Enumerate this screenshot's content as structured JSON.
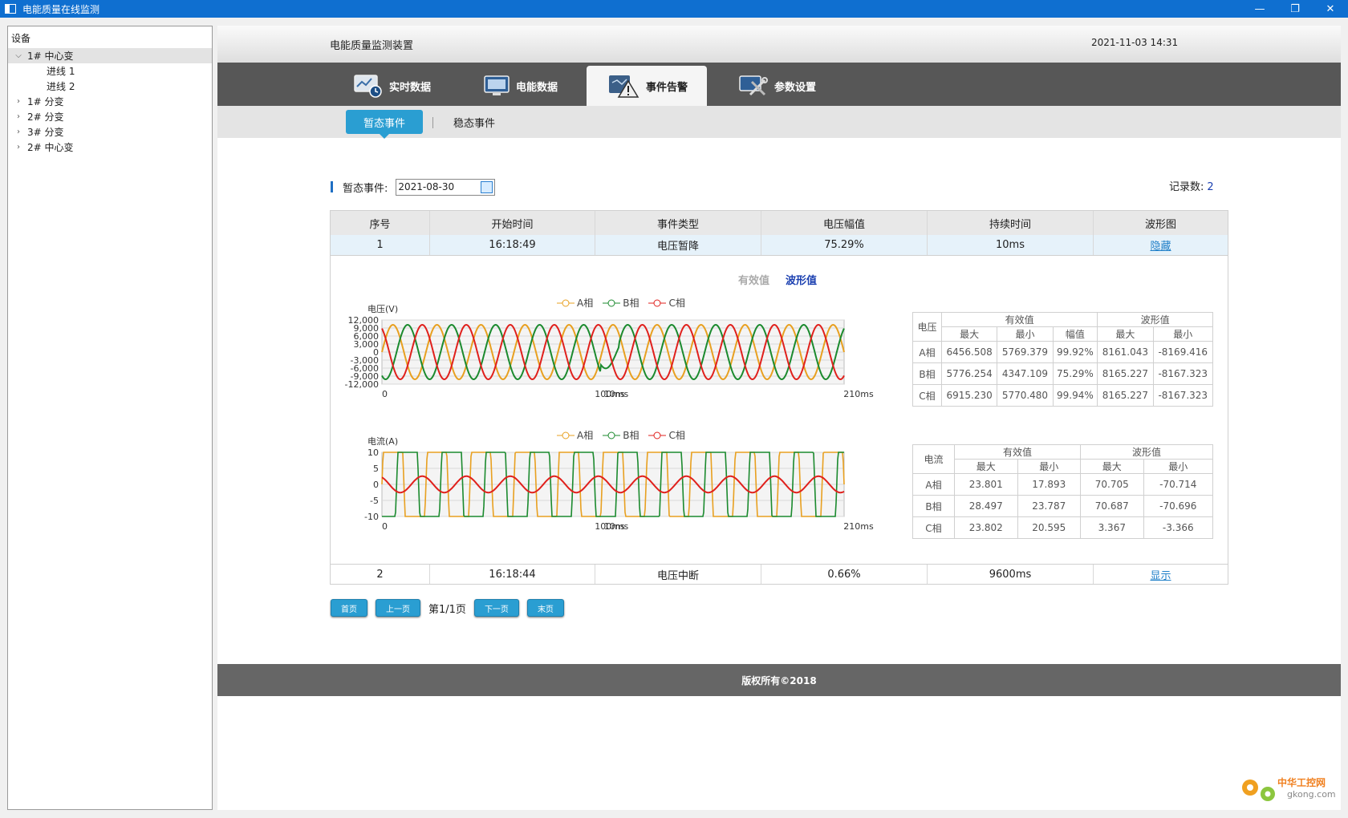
{
  "window": {
    "title": "电能质量在线监测",
    "buttons": {
      "minimize": "—",
      "restore": "❐",
      "close": "✕"
    }
  },
  "sidebar": {
    "header": "设备",
    "items": [
      {
        "label": "1#  中心变",
        "expanded": true,
        "selected": true,
        "level": 0
      },
      {
        "label": "进线  1",
        "level": 1
      },
      {
        "label": "进线  2",
        "level": 1
      },
      {
        "label": "1# 分变",
        "expanded": false,
        "level": 0
      },
      {
        "label": "2# 分变",
        "expanded": false,
        "level": 0
      },
      {
        "label": "3# 分变",
        "expanded": false,
        "level": 0
      },
      {
        "label": "2#  中心变",
        "expanded": false,
        "level": 0
      }
    ]
  },
  "header": {
    "device_title": "电能质量监测装置",
    "datetime": "2021-11-03 14:31"
  },
  "nav": {
    "tabs": [
      {
        "label": "实时数据",
        "icon": "monitor-clock-icon"
      },
      {
        "label": "电能数据",
        "icon": "monitor-chart-icon"
      },
      {
        "label": "事件告警",
        "icon": "alarm-warning-icon",
        "active": true
      },
      {
        "label": "参数设置",
        "icon": "settings-tools-icon"
      }
    ]
  },
  "subtabs": {
    "transient": "暂态事件",
    "steady": "稳态事件"
  },
  "filter": {
    "label": "暂态事件:",
    "date": "2021-08-30",
    "record_label": "记录数:",
    "record_count": "2"
  },
  "table": {
    "headers": [
      "序号",
      "开始时间",
      "事件类型",
      "电压幅值",
      "持续时间",
      "波形图"
    ],
    "rows": [
      {
        "no": "1",
        "start": "16:18:49",
        "type": "电压暂降",
        "amplitude": "75.29%",
        "duration": "10ms",
        "action": "隐藏"
      },
      {
        "no": "2",
        "start": "16:18:44",
        "type": "电压中断",
        "amplitude": "0.66%",
        "duration": "9600ms",
        "action": "显示"
      }
    ]
  },
  "detail": {
    "toggle": {
      "rms": "有效值",
      "wave": "波形值"
    },
    "legend": [
      "A相",
      "B相",
      "C相"
    ],
    "phase_colors": {
      "A": "#e8a020",
      "B": "#1b8a2e",
      "C": "#e0201c"
    },
    "voltage_chart": {
      "ylabel": "电压(V)",
      "yticks": [
        "12,000",
        "9,000",
        "6,000",
        "3,000",
        "0",
        "-3,000",
        "-6,000",
        "-9,000",
        "-12,000"
      ],
      "xticks": [
        "0",
        "100ms",
        "10ms",
        "210ms"
      ]
    },
    "current_chart": {
      "ylabel": "电流(A)",
      "yticks": [
        "10",
        "5",
        "0",
        "-5",
        "-10"
      ],
      "xticks": [
        "0",
        "100ms",
        "10ms",
        "210ms"
      ]
    },
    "voltage_table": {
      "corner": "电压",
      "group_rms": "有效值",
      "group_wave": "波形值",
      "sub": [
        "最大",
        "最小",
        "幅值",
        "最大",
        "最小"
      ],
      "rows": [
        [
          "A相",
          "6456.508",
          "5769.379",
          "99.92%",
          "8161.043",
          "-8169.416"
        ],
        [
          "B相",
          "5776.254",
          "4347.109",
          "75.29%",
          "8165.227",
          "-8167.323"
        ],
        [
          "C相",
          "6915.230",
          "5770.480",
          "99.94%",
          "8165.227",
          "-8167.323"
        ]
      ]
    },
    "current_table": {
      "corner": "电流",
      "group_rms": "有效值",
      "group_wave": "波形值",
      "sub": [
        "最大",
        "最小",
        "最大",
        "最小"
      ],
      "rows": [
        [
          "A相",
          "23.801",
          "17.893",
          "70.705",
          "-70.714"
        ],
        [
          "B相",
          "28.497",
          "23.787",
          "70.687",
          "-70.696"
        ],
        [
          "C相",
          "23.802",
          "20.595",
          "3.367",
          "-3.366"
        ]
      ]
    }
  },
  "pager": {
    "first": "首页",
    "prev": "上一页",
    "info": "第1/1页",
    "next": "下一页",
    "last": "末页"
  },
  "footer": "版权所有©2018",
  "watermark": {
    "text1": "中华工控网",
    "text2": "gkong.com"
  }
}
